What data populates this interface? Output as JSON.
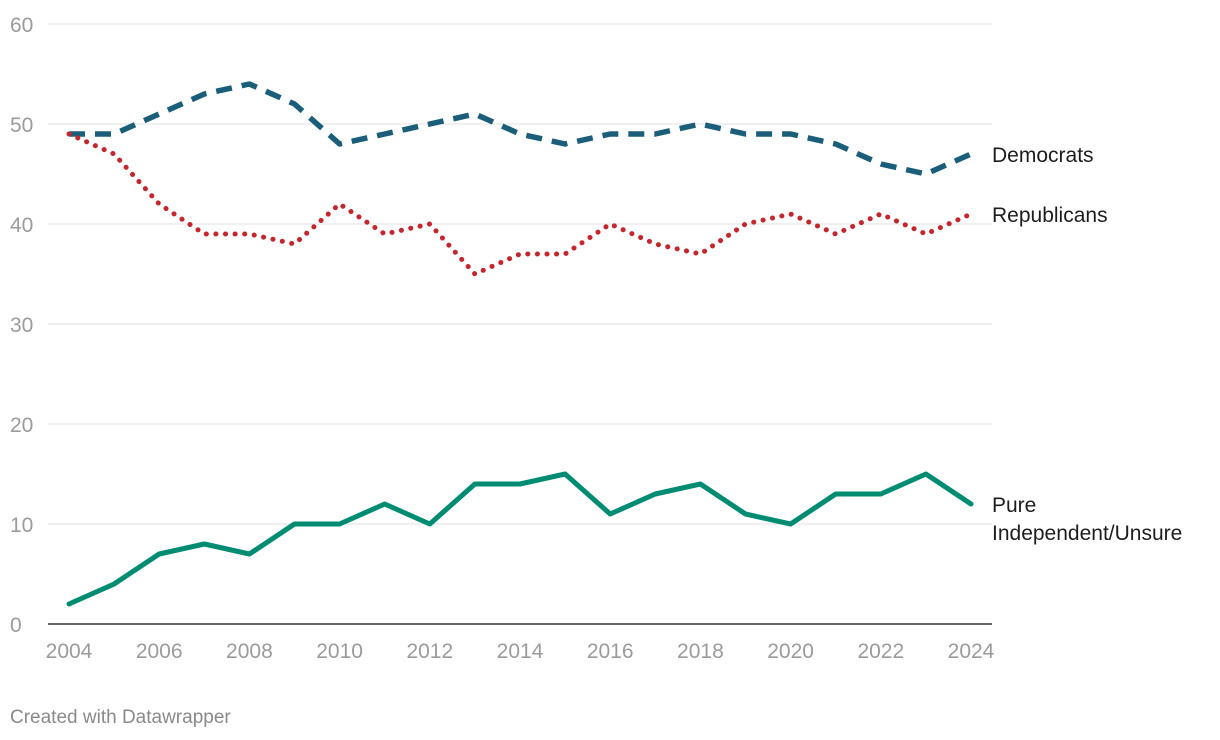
{
  "chart_data": {
    "type": "line",
    "title": "",
    "xlabel": "",
    "ylabel": "",
    "x": [
      2004,
      2005,
      2006,
      2007,
      2008,
      2009,
      2010,
      2011,
      2012,
      2013,
      2014,
      2015,
      2016,
      2017,
      2018,
      2019,
      2020,
      2021,
      2022,
      2023,
      2024
    ],
    "x_ticks": [
      "2004",
      "2006",
      "2008",
      "2010",
      "2012",
      "2014",
      "2016",
      "2018",
      "2020",
      "2022",
      "2024"
    ],
    "y_ticks": [
      "0",
      "10",
      "20",
      "30",
      "40",
      "50",
      "60"
    ],
    "xlim": [
      2004,
      2024
    ],
    "ylim": [
      0,
      60
    ],
    "grid": true,
    "legend": "inline-right",
    "series": [
      {
        "name": "Democrats",
        "label_lines": [
          "Democrats"
        ],
        "color": "#1a5e7a",
        "style": "dashed",
        "values": [
          49,
          49,
          51,
          53,
          54,
          52,
          48,
          49,
          50,
          51,
          49,
          48,
          49,
          49,
          50,
          49,
          49,
          48,
          46,
          45,
          47
        ]
      },
      {
        "name": "Republicans",
        "label_lines": [
          "Republicans"
        ],
        "color": "#c4262e",
        "style": "dotted",
        "values": [
          49,
          47,
          42,
          39,
          39,
          38,
          42,
          39,
          40,
          35,
          37,
          37,
          40,
          38,
          37,
          40,
          41,
          39,
          41,
          39,
          41
        ]
      },
      {
        "name": "Pure Independent/Unsure",
        "label_lines": [
          "Pure",
          "Independent/Unsure"
        ],
        "color": "#008c72",
        "style": "solid",
        "values": [
          2,
          4,
          7,
          8,
          7,
          10,
          10,
          12,
          10,
          14,
          14,
          15,
          11,
          13,
          14,
          11,
          10,
          13,
          13,
          15,
          12
        ]
      }
    ]
  },
  "footer": {
    "credit": "Created with Datawrapper"
  }
}
